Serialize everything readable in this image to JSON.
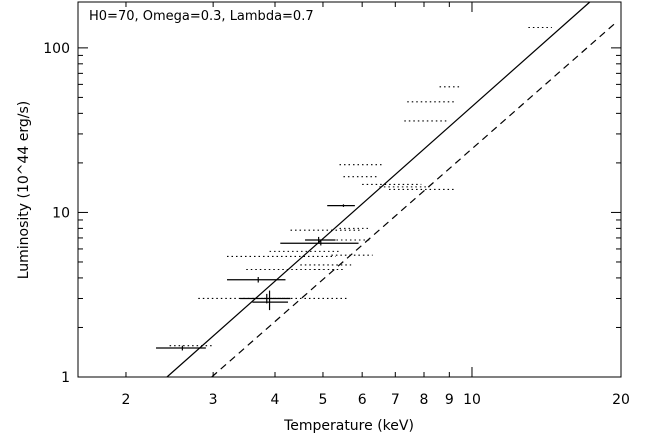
{
  "chart_data": {
    "type": "scatter",
    "title": "",
    "annotation": "H0=70, Omega=0.3, Lambda=0.7",
    "xlabel": "Temperature (keV)",
    "ylabel": "Luminosity (10^44 erg/s)",
    "x_scale": "log",
    "y_scale": "log",
    "xlim": [
      1.6,
      20
    ],
    "ylim": [
      1,
      190
    ],
    "x_tick_labels": [
      {
        "value": 2,
        "label": "2"
      },
      {
        "value": 3,
        "label": "3"
      },
      {
        "value": 4,
        "label": "4"
      },
      {
        "value": 5,
        "label": "5"
      },
      {
        "value": 6,
        "label": "6"
      },
      {
        "value": 7,
        "label": "7"
      },
      {
        "value": 8,
        "label": "8"
      },
      {
        "value": 9,
        "label": "9"
      },
      {
        "value": 10,
        "label": "10"
      },
      {
        "value": 20,
        "label": "20"
      }
    ],
    "y_tick_labels": [
      {
        "value": 1,
        "label": "1"
      },
      {
        "value": 10,
        "label": "10"
      },
      {
        "value": 100,
        "label": "100"
      }
    ],
    "grid": false,
    "colors": {
      "axes": "#000000",
      "data": "#000000"
    },
    "series": [
      {
        "style": "solid-errorbars",
        "points": [
          {
            "x": 2.6,
            "xerr": [
              2.3,
              2.9
            ],
            "y": 1.5,
            "yerr": [
              1.45,
              1.55
            ]
          },
          {
            "x": 3.7,
            "xerr": [
              3.2,
              4.2
            ],
            "y": 3.9,
            "yerr": [
              3.75,
              4.05
            ]
          },
          {
            "x": 3.85,
            "xerr": [
              3.4,
              4.3
            ],
            "y": 3.0,
            "yerr": [
              2.8,
              3.2
            ]
          },
          {
            "x": 3.9,
            "xerr": [
              3.6,
              4.25
            ],
            "y": 2.85,
            "yerr": [
              2.55,
              3.35
            ]
          },
          {
            "x": 4.9,
            "xerr": [
              4.6,
              5.3
            ],
            "y": 6.8,
            "yerr": [
              6.5,
              7.1
            ]
          },
          {
            "x": 4.95,
            "xerr": [
              4.1,
              5.9
            ],
            "y": 6.5,
            "yerr": [
              6.3,
              6.7
            ]
          },
          {
            "x": 5.5,
            "xerr": [
              5.1,
              5.8
            ],
            "y": 11.0,
            "yerr": [
              10.8,
              11.2
            ]
          }
        ]
      },
      {
        "style": "dotted-errorbars",
        "points": [
          {
            "x": 1.85,
            "xerr": [
              1.6,
              2.3
            ],
            "y": 1.0
          },
          {
            "x": 2.05,
            "xerr": [
              1.8,
              2.8
            ],
            "y": 1.0
          },
          {
            "x": 2.65,
            "xerr": [
              2.45,
              3.0
            ],
            "y": 1.55
          },
          {
            "x": 3.6,
            "xerr": [
              2.8,
              4.3
            ],
            "y": 3.0
          },
          {
            "x": 4.2,
            "xerr": [
              3.2,
              5.3
            ],
            "y": 5.4
          },
          {
            "x": 4.3,
            "xerr": [
              3.5,
              5.0
            ],
            "y": 4.5
          },
          {
            "x": 4.6,
            "xerr": [
              3.8,
              5.6
            ],
            "y": 3.0
          },
          {
            "x": 4.7,
            "xerr": [
              3.9,
              5.4
            ],
            "y": 5.8
          },
          {
            "x": 5.0,
            "xerr": [
              4.5,
              5.7
            ],
            "y": 4.8
          },
          {
            "x": 5.1,
            "xerr": [
              4.3,
              6.0
            ],
            "y": 7.8
          },
          {
            "x": 5.25,
            "xerr": [
              4.8,
              5.5
            ],
            "y": 4.5
          },
          {
            "x": 5.6,
            "xerr": [
              5.0,
              6.2
            ],
            "y": 6.8
          },
          {
            "x": 5.7,
            "xerr": [
              5.4,
              6.2
            ],
            "y": 8.0
          },
          {
            "x": 5.8,
            "xerr": [
              5.2,
              6.3
            ],
            "y": 5.5
          },
          {
            "x": 6.0,
            "xerr": [
              5.5,
              6.5
            ],
            "y": 16.5
          },
          {
            "x": 6.0,
            "xerr": [
              5.4,
              6.6
            ],
            "y": 19.5
          },
          {
            "x": 6.9,
            "xerr": [
              6.0,
              7.9
            ],
            "y": 14.8
          },
          {
            "x": 7.4,
            "xerr": [
              6.5,
              8.2
            ],
            "y": 14.3
          },
          {
            "x": 7.8,
            "xerr": [
              6.8,
              9.3
            ],
            "y": 13.8
          },
          {
            "x": 8.2,
            "xerr": [
              7.3,
              9.0
            ],
            "y": 36.0
          },
          {
            "x": 8.4,
            "xerr": [
              7.4,
              9.3
            ],
            "y": 47.0
          },
          {
            "x": 9.1,
            "xerr": [
              8.6,
              9.5
            ],
            "y": 58.0
          },
          {
            "x": 13.8,
            "xerr": [
              13.0,
              14.5
            ],
            "y": 133.0
          }
        ]
      },
      {
        "style": "solid-line",
        "x": [
          2.42,
          17.3
        ],
        "y": [
          1.0,
          190.0
        ]
      },
      {
        "style": "dashed-line",
        "x": [
          2.98,
          19.4
        ],
        "y": [
          1.0,
          140.0
        ]
      }
    ]
  }
}
